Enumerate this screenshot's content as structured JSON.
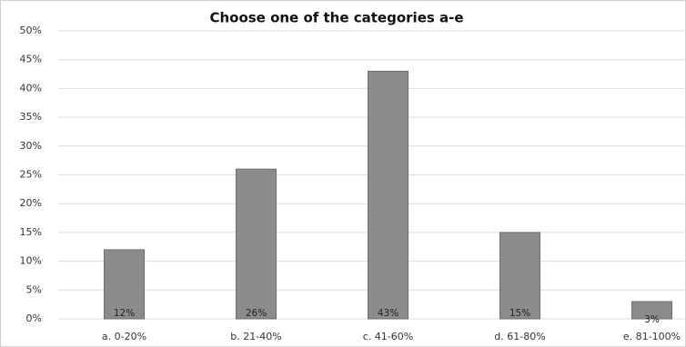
{
  "chart_data": {
    "type": "bar",
    "title": "Choose one of the categories a-e",
    "categories": [
      "a. 0-20%",
      "b. 21-40%",
      "c. 41-60%",
      "d. 61-80%",
      "e. 81-100%"
    ],
    "values": [
      12,
      26,
      43,
      15,
      3
    ],
    "value_labels": [
      "12%",
      "26%",
      "43%",
      "15%",
      "3%"
    ],
    "color": "#8c8c8c",
    "ylim": [
      0,
      50
    ],
    "yticks": [
      {
        "value": 0,
        "label": "0%"
      },
      {
        "value": 5,
        "label": "5%"
      },
      {
        "value": 10,
        "label": "10%"
      },
      {
        "value": 15,
        "label": "15%"
      },
      {
        "value": 20,
        "label": "20%"
      },
      {
        "value": 25,
        "label": "25%"
      },
      {
        "value": 30,
        "label": "30%"
      },
      {
        "value": 35,
        "label": "35%"
      },
      {
        "value": 40,
        "label": "40%"
      },
      {
        "value": 45,
        "label": "45%"
      },
      {
        "value": 50,
        "label": "50%"
      }
    ],
    "grid": true
  }
}
